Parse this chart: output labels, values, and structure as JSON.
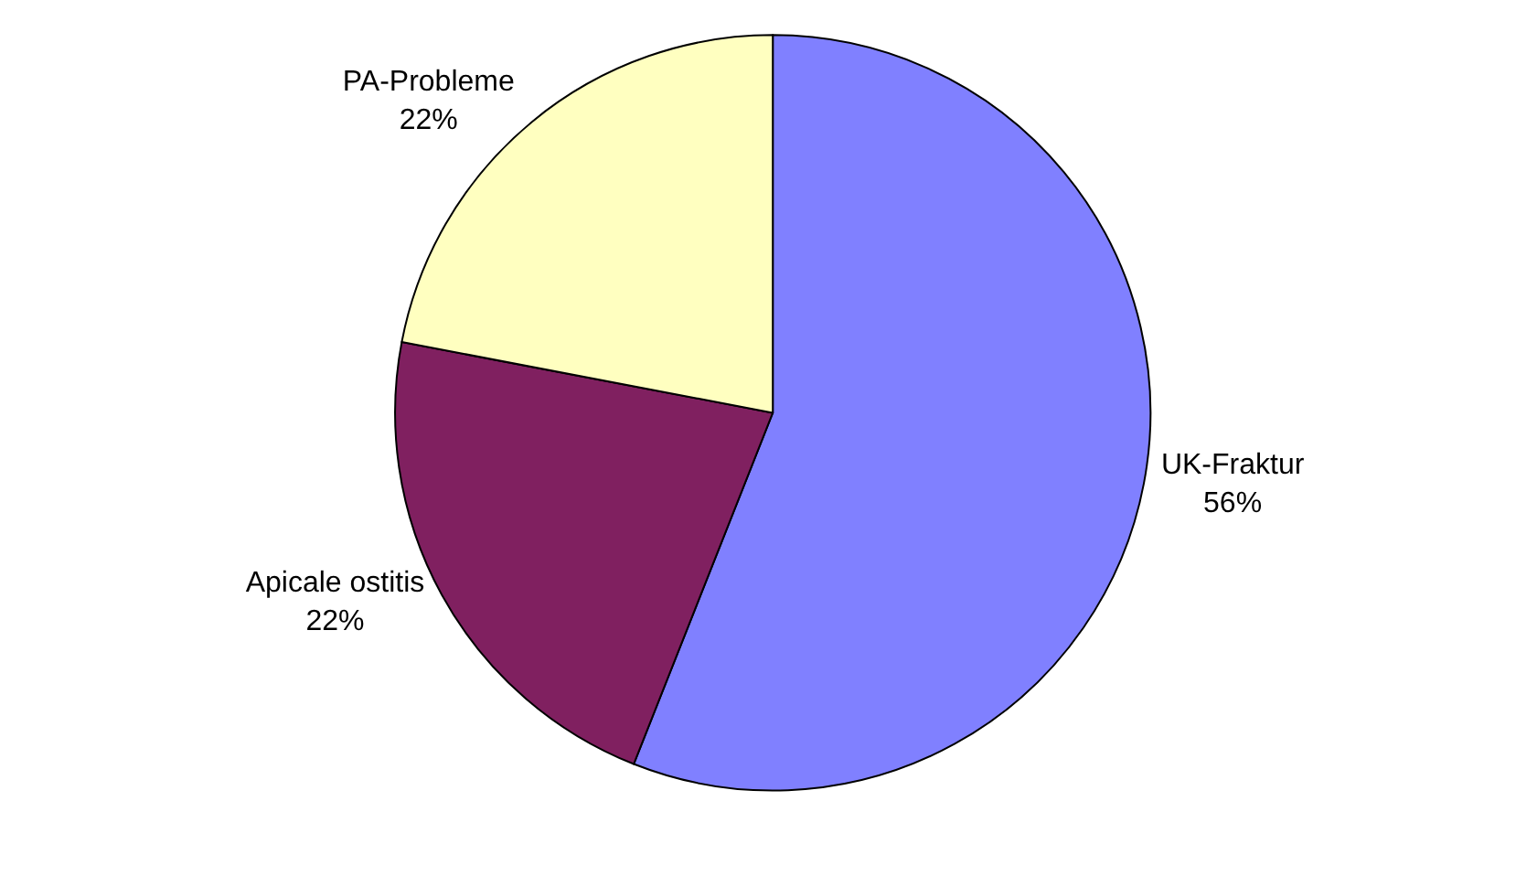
{
  "chart_data": {
    "type": "pie",
    "categories": [
      "UK-Fraktur",
      "Apicale ostitis",
      "PA-Probleme"
    ],
    "values": [
      56,
      22,
      22
    ],
    "value_labels": [
      "56%",
      "22%",
      "22%"
    ],
    "colors": [
      "#8080ff",
      "#802060",
      "#ffffc0"
    ],
    "legend": false
  }
}
